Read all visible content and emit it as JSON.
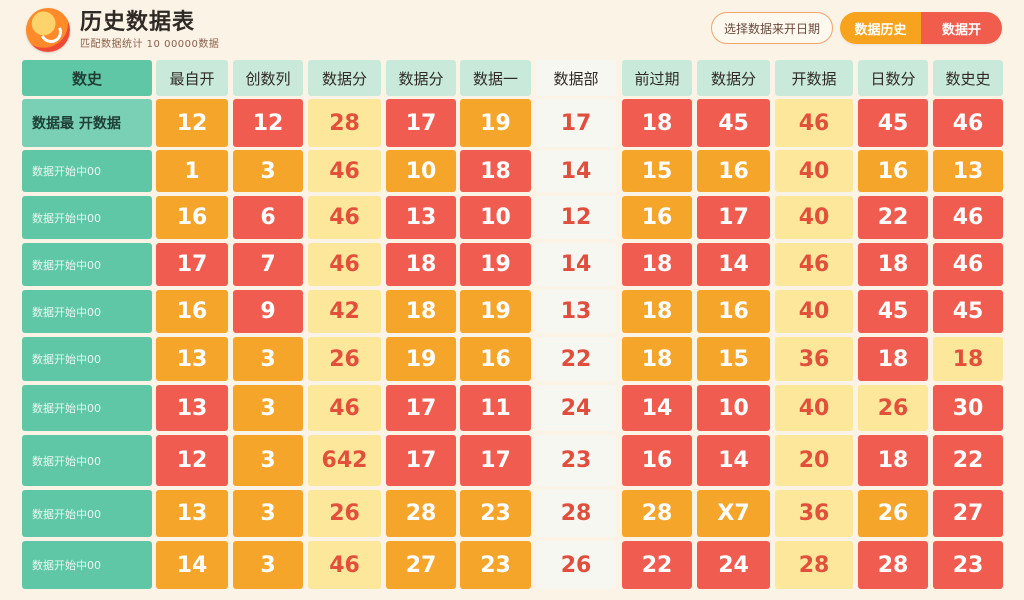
{
  "header": {
    "title": "历史数据表",
    "subtitle": "匹配数据统计 10 00000数据",
    "filter_label": "选择数据来开日期",
    "tab_left": "数据历史",
    "tab_right": "数据开"
  },
  "table": {
    "columns": [
      "数史",
      "最自开",
      "创数列",
      "数据分",
      "数据分",
      "数据一",
      "数据部",
      "前过期",
      "数据分",
      "开数据",
      "日数分",
      "数史史"
    ],
    "rows": [
      {
        "label": "数据最 开数据",
        "cells": [
          "12",
          "12",
          "28",
          "17",
          "19",
          "17",
          "18",
          "45",
          "46",
          "45",
          "46"
        ]
      },
      {
        "label": "数据开始中00",
        "cells": [
          "1",
          "3",
          "46",
          "10",
          "18",
          "14",
          "15",
          "16",
          "40",
          "16",
          "13"
        ]
      },
      {
        "label": "数据开始中00",
        "cells": [
          "16",
          "6",
          "46",
          "13",
          "10",
          "12",
          "16",
          "17",
          "40",
          "22",
          "46"
        ]
      },
      {
        "label": "数据开始中00",
        "cells": [
          "17",
          "7",
          "46",
          "18",
          "19",
          "14",
          "18",
          "14",
          "46",
          "18",
          "46"
        ]
      },
      {
        "label": "数据开始中00",
        "cells": [
          "16",
          "9",
          "42",
          "18",
          "19",
          "13",
          "18",
          "16",
          "40",
          "45",
          "45"
        ]
      },
      {
        "label": "数据开始中00",
        "cells": [
          "13",
          "3",
          "26",
          "19",
          "16",
          "22",
          "18",
          "15",
          "36",
          "18",
          "18"
        ]
      },
      {
        "label": "数据开始中00",
        "cells": [
          "13",
          "3",
          "46",
          "17",
          "11",
          "24",
          "14",
          "10",
          "40",
          "26",
          "30"
        ]
      },
      {
        "label": "数据开始中00",
        "cells": [
          "12",
          "3",
          "642",
          "17",
          "17",
          "23",
          "16",
          "14",
          "20",
          "18",
          "22"
        ]
      },
      {
        "label": "数据开始中00",
        "cells": [
          "13",
          "3",
          "26",
          "28",
          "23",
          "28",
          "28",
          "X7",
          "36",
          "26",
          "27"
        ]
      },
      {
        "label": "数据开始中00",
        "cells": [
          "14",
          "3",
          "46",
          "27",
          "23",
          "26",
          "22",
          "24",
          "28",
          "28",
          "23"
        ]
      }
    ]
  },
  "colors": {
    "orange": "#f6a52b",
    "red": "#f05d50",
    "yellow": "#fde79a",
    "mint": "#5fc7a6",
    "white": "#f7f7f2",
    "background": "#fbf3e6"
  },
  "icons": {
    "logo": "app-logo-icon"
  }
}
